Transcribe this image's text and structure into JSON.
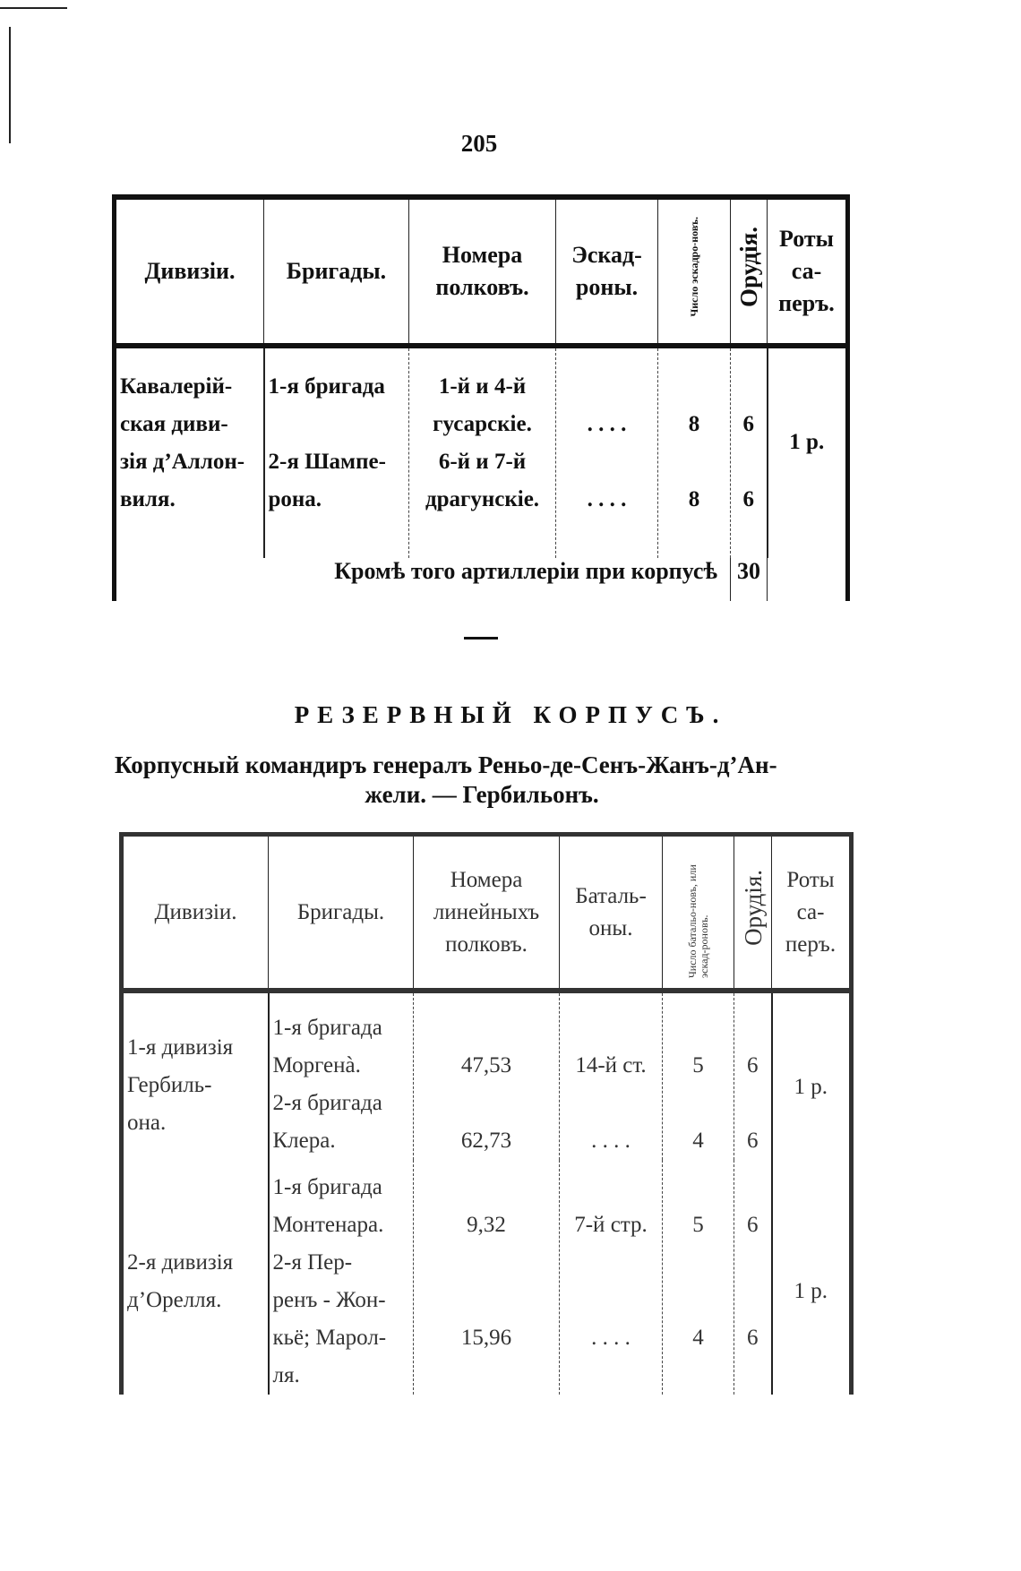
{
  "page_number": "205",
  "table1": {
    "headers": [
      "Дивизіи.",
      "Бригады.",
      "Номера полковъ.",
      "Эскад-роны.",
      "Число эскадро-новъ.",
      "Орудія.",
      "Роты са-перъ."
    ],
    "body": {
      "divisions": [
        "Кавалерій-",
        "ская диви-",
        "зія д’Аллон-",
        "виля."
      ],
      "brigades": [
        "1-я бригада",
        "",
        "2-я Шампе-",
        "рона."
      ],
      "regiments": [
        "1-й и 4-й",
        "гусарскіе.",
        "6-й и 7-й",
        "драгунскіе."
      ],
      "squadrons": [
        "",
        ". . . .",
        "",
        ". . . ."
      ],
      "squadron_count": [
        "",
        "8",
        "",
        "8"
      ],
      "guns": [
        "",
        "6",
        "",
        "6"
      ],
      "sappers": [
        "",
        "",
        "1 р."
      ]
    },
    "footer": {
      "label": "Кромѣ того артиллеріи при корпусѣ",
      "guns": "30"
    }
  },
  "heading": "РЕЗЕРВНЫЙ КОРПУСЪ.",
  "subtitle_line1": "Корпусный командиръ генералъ Реньо-де-Сенъ-Жанъ-д’Ан-",
  "subtitle_line2": "жели. — Гербильонъ.",
  "table2": {
    "headers": [
      "Дивизіи.",
      "Бригады.",
      "Номера линейныхъ полковъ.",
      "Баталь-оны.",
      "Число батальо-новъ, или эскад-роновъ.",
      "Орудія.",
      "Роты са-перъ."
    ],
    "rows": [
      {
        "divisions": [
          "1-я дивизія",
          "Гербиль-",
          "она."
        ],
        "brigades": [
          "1-я бригада",
          "Моргенà.",
          "2-я бригада",
          "Клера."
        ],
        "regiments": [
          "",
          "47,53",
          "",
          "62,73"
        ],
        "battalions": [
          "",
          "14-й ст.",
          "",
          ". . . ."
        ],
        "count": [
          "",
          "5",
          "",
          "4"
        ],
        "guns": [
          "",
          "6",
          "",
          "6"
        ],
        "sappers": [
          "",
          "",
          "1 р."
        ]
      },
      {
        "divisions": [
          "",
          "",
          "2-я дивизія",
          "д’Орелля."
        ],
        "brigades": [
          "1-я бригада",
          "Монтенара.",
          " 2-я  Пер-",
          "ренъ - Жон-",
          "кьё; Марол-",
          "ля."
        ],
        "regiments": [
          "",
          "9,32",
          "",
          "",
          "15,96"
        ],
        "battalions": [
          "",
          "7-й стр.",
          "",
          "",
          ". . . ."
        ],
        "count": [
          "",
          "5",
          "",
          "",
          "4"
        ],
        "guns": [
          "",
          "6",
          "",
          "",
          "6"
        ],
        "sappers": [
          "",
          "",
          "",
          "1 р."
        ]
      }
    ]
  }
}
